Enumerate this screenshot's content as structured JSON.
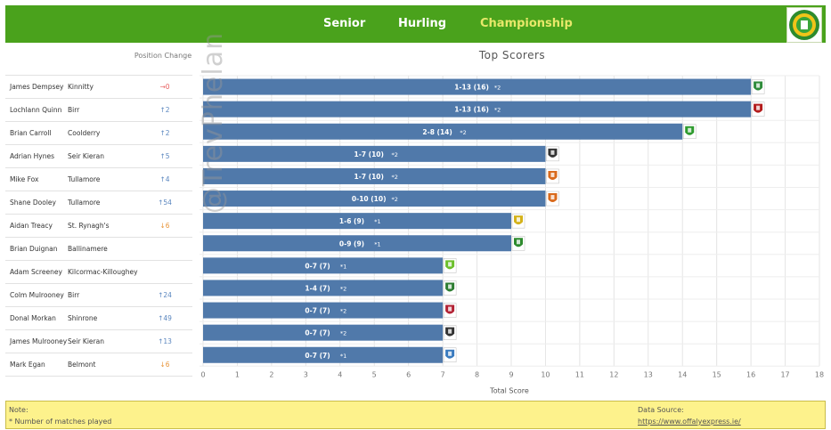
{
  "nav": {
    "items": [
      "Senior",
      "Hurling",
      "Championship"
    ]
  },
  "table": {
    "position_header": "Position Change",
    "rows": [
      {
        "name": "James Dempsey",
        "club": "Kinnitty",
        "change": "→0",
        "dir": "same"
      },
      {
        "name": "Lochlann Quinn",
        "club": "Birr",
        "change": "↑2",
        "dir": "up"
      },
      {
        "name": "Brian Carroll",
        "club": "Coolderry",
        "change": "↑2",
        "dir": "up"
      },
      {
        "name": "Adrian Hynes",
        "club": "Seir Kieran",
        "change": "↑5",
        "dir": "up"
      },
      {
        "name": "Mike Fox",
        "club": "Tullamore",
        "change": "↑4",
        "dir": "up"
      },
      {
        "name": "Shane Dooley",
        "club": "Tullamore",
        "change": "↑54",
        "dir": "up"
      },
      {
        "name": "Aidan Treacy",
        "club": "St. Rynagh's",
        "change": "↓6",
        "dir": "down"
      },
      {
        "name": "Brian Duignan",
        "club": "Ballinamere",
        "change": "",
        "dir": "none"
      },
      {
        "name": "Adam Screeney",
        "club": "Kilcormac-Killoughey",
        "change": "",
        "dir": "none"
      },
      {
        "name": "Colm Mulrooney",
        "club": "Birr",
        "change": "↑24",
        "dir": "up"
      },
      {
        "name": "Donal Morkan",
        "club": "Shinrone",
        "change": "↑49",
        "dir": "up"
      },
      {
        "name": "James Mulrooney",
        "club": "Seir Kieran",
        "change": "↑13",
        "dir": "up"
      },
      {
        "name": "Mark Egan",
        "club": "Belmont",
        "change": "↓6",
        "dir": "down"
      }
    ]
  },
  "chart_data": {
    "type": "bar",
    "orientation": "horizontal",
    "title": "Top Scorers",
    "xlabel": "Total Score",
    "xlim": [
      0,
      18
    ],
    "xticks": [
      0,
      1,
      2,
      3,
      4,
      5,
      6,
      7,
      8,
      9,
      10,
      11,
      12,
      13,
      14,
      15,
      16,
      17,
      18
    ],
    "categories": [
      "James Dempsey",
      "Lochlann Quinn",
      "Brian Carroll",
      "Adrian Hynes",
      "Mike Fox",
      "Shane Dooley",
      "Aidan Treacy",
      "Brian Duignan",
      "Adam Screeney",
      "Colm Mulrooney",
      "Donal Morkan",
      "James Mulrooney",
      "Mark Egan"
    ],
    "values": [
      16,
      16,
      14,
      10,
      10,
      10,
      9,
      9,
      7,
      7,
      7,
      7,
      7
    ],
    "labels": [
      "1-13 (16)",
      "1-13 (16)",
      "2-8 (14)",
      "1-7 (10)",
      "1-7 (10)",
      "0-10 (10)",
      "1-6 (9)",
      "0-9 (9)",
      "0-7 (7)",
      "1-4 (7)",
      "0-7 (7)",
      "0-7 (7)",
      "0-7 (7)"
    ],
    "matches": [
      "*2",
      "*2",
      "*2",
      "*2",
      "*2",
      "*2",
      "*1",
      "*1",
      "*1",
      "*2",
      "*2",
      "*2",
      "*1"
    ],
    "bar_color": "#5079aa",
    "grid": true
  },
  "club_crest_colors": [
    "#2e8b3a",
    "#b31b1b",
    "#2e9b2e",
    "#333333",
    "#d96a1c",
    "#d96a1c",
    "#d4b21a",
    "#2e8b2e",
    "#6cbf2c",
    "#2e7d32",
    "#b22234",
    "#333333",
    "#3a7bbf"
  ],
  "watermark": "@TrevPhelan",
  "footer": {
    "note_title": "Note:",
    "note_text": "* Number of matches played",
    "source_title": "Data Source:",
    "source_link": "https://www.offalyexpress.ie/"
  },
  "colors": {
    "header_green": "#4aa21c",
    "active_nav": "#e8e86a",
    "footer_yellow": "#fdf28c"
  }
}
